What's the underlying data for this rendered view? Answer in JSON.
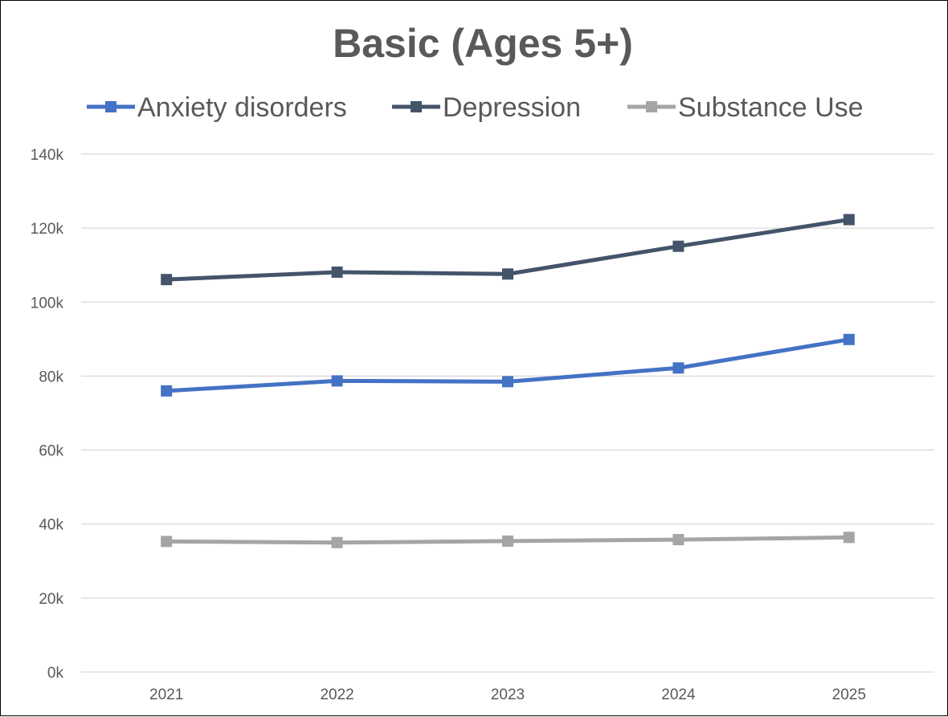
{
  "chart_data": {
    "type": "line",
    "title": "Basic (Ages 5+)",
    "xlabel": "",
    "ylabel": "",
    "categories": [
      "2021",
      "2022",
      "2023",
      "2024",
      "2025"
    ],
    "ylim": [
      0,
      140000
    ],
    "y_ticks": [
      0,
      20000,
      40000,
      60000,
      80000,
      100000,
      120000,
      140000
    ],
    "y_tick_labels": [
      "0k",
      "20k",
      "40k",
      "60k",
      "80k",
      "100k",
      "120k",
      "140k"
    ],
    "grid": true,
    "legend_position": "top",
    "series": [
      {
        "name": "Anxiety disorders",
        "color": "#4472c4",
        "marker": "square",
        "values": [
          76000,
          78700,
          78500,
          82200,
          89900
        ]
      },
      {
        "name": "Depression",
        "color": "#44546a",
        "marker": "square",
        "values": [
          106100,
          108100,
          107600,
          115100,
          122300
        ]
      },
      {
        "name": "Substance Use",
        "color": "#a5a5a5",
        "marker": "square",
        "values": [
          35300,
          35000,
          35400,
          35800,
          36400
        ]
      }
    ]
  }
}
